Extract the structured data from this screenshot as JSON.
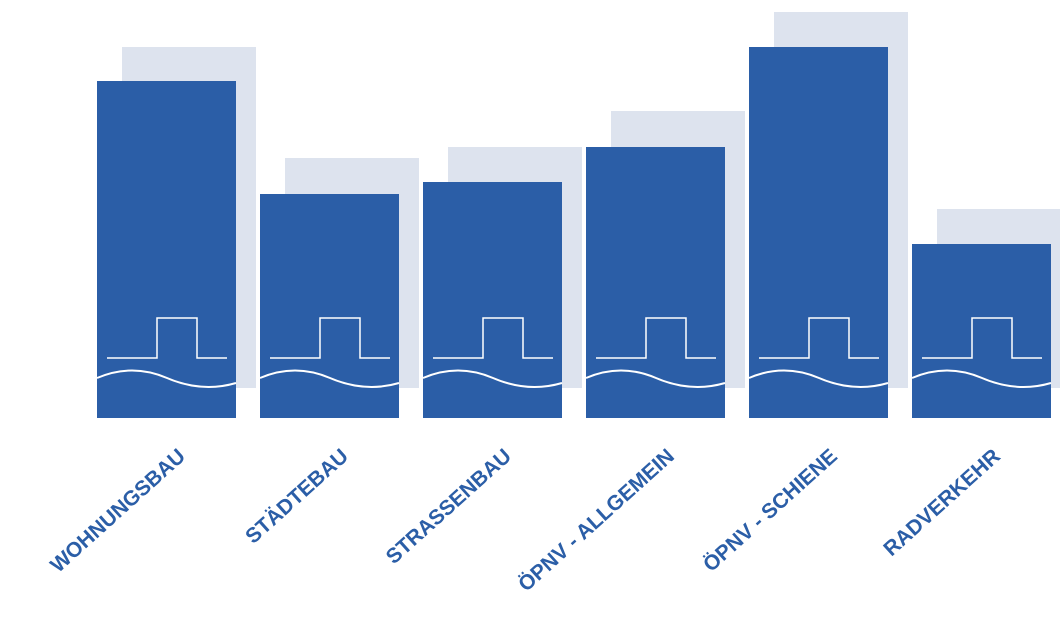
{
  "chart_data": {
    "type": "bar",
    "categories": [
      "WOHNUNGSBAU",
      "STÄDTEBAU",
      "STRASSENBAU",
      "ÖPNV - ALLGEMEIN",
      "ÖPNV - SCHIENE",
      "RADVERKEHR"
    ],
    "series": [
      {
        "color": "#dde3ee",
        "values": [
          341,
          230,
          241,
          277,
          376,
          179
        ]
      },
      {
        "color": "#2b5ea7",
        "values": [
          337,
          224,
          236,
          271,
          371,
          174
        ]
      }
    ]
  }
}
